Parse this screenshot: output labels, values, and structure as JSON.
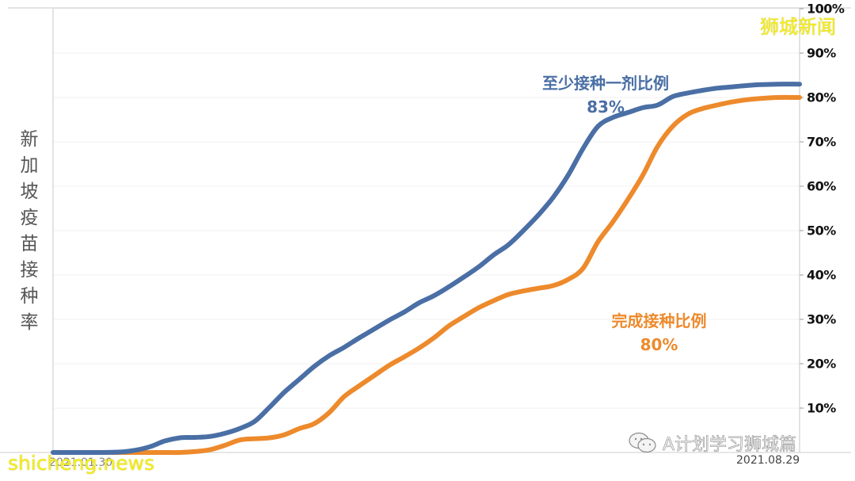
{
  "chart_data": {
    "type": "line",
    "title": "",
    "ylabel": "新加坡疫苗接种率",
    "xlabel": "",
    "x_start_label": "2021.01.30",
    "x_end_label": "2021.08.29",
    "ylim": [
      0,
      100
    ],
    "y_ticks": [
      "10%",
      "20%",
      "30%",
      "40%",
      "50%",
      "60%",
      "70%",
      "80%",
      "90%",
      "100%"
    ],
    "y_axis_position": "right",
    "grid": true,
    "x": [
      0,
      0.03,
      0.06,
      0.09,
      0.11,
      0.13,
      0.15,
      0.17,
      0.19,
      0.21,
      0.23,
      0.25,
      0.27,
      0.29,
      0.31,
      0.33,
      0.35,
      0.37,
      0.39,
      0.41,
      0.43,
      0.45,
      0.47,
      0.49,
      0.51,
      0.53,
      0.55,
      0.57,
      0.59,
      0.61,
      0.63,
      0.65,
      0.67,
      0.69,
      0.71,
      0.73,
      0.75,
      0.77,
      0.79,
      0.81,
      0.83,
      0.85,
      0.87,
      0.89,
      0.91,
      0.93,
      0.95,
      0.97,
      1.0
    ],
    "series": [
      {
        "name": "至少接种一剂比例",
        "color": "#4a6fa5",
        "final_value_label": "83%",
        "values": [
          0,
          0,
          0,
          0.1,
          0.5,
          1.3,
          2.6,
          3.3,
          3.4,
          3.6,
          4.3,
          5.4,
          7.0,
          10.2,
          13.6,
          16.5,
          19.4,
          21.8,
          23.7,
          25.8,
          27.8,
          29.8,
          31.6,
          33.7,
          35.3,
          37.3,
          39.5,
          41.8,
          44.5,
          46.8,
          50.0,
          53.5,
          57.5,
          62.5,
          68.5,
          73.5,
          75.5,
          76.6,
          77.7,
          78.3,
          80.2,
          81.0,
          81.6,
          82.1,
          82.4,
          82.7,
          82.9,
          83.0,
          83.0
        ]
      },
      {
        "name": "完成接种比例",
        "color": "#ed8a2c",
        "final_value_label": "80%",
        "values": [
          0,
          0,
          0,
          0,
          0,
          0,
          0,
          0,
          0.2,
          0.6,
          1.6,
          2.8,
          3.1,
          3.3,
          4.0,
          5.4,
          6.5,
          9.0,
          12.6,
          15.0,
          17.3,
          19.6,
          21.5,
          23.5,
          25.8,
          28.5,
          30.6,
          32.6,
          34.2,
          35.6,
          36.4,
          37.0,
          37.6,
          39.0,
          41.5,
          47.5,
          52.0,
          57.0,
          62.5,
          69.0,
          73.5,
          76.2,
          77.5,
          78.3,
          79.0,
          79.5,
          79.8,
          80.0,
          80.0
        ]
      }
    ],
    "annotations": [
      {
        "text": "至少接种一剂比例",
        "sub": "83%",
        "color": "#4a6fa5"
      },
      {
        "text": "完成接种比例",
        "sub": "80%",
        "color": "#ed8a2c"
      }
    ]
  },
  "labels": {
    "ylabel_chars": [
      "新",
      "加",
      "坡",
      "疫",
      "苗",
      "接",
      "种",
      "率"
    ],
    "x_start": "2021.01.30",
    "x_end": "2021.08.29",
    "annot_blue_title": "至少接种一剂比例",
    "annot_blue_value": "83%",
    "annot_orange_title": "完成接种比例",
    "annot_orange_value": "80%"
  },
  "watermarks": {
    "top_right": "狮城新闻",
    "bottom_left": "shicheng.news",
    "wechat": "A计划学习狮城篇"
  }
}
